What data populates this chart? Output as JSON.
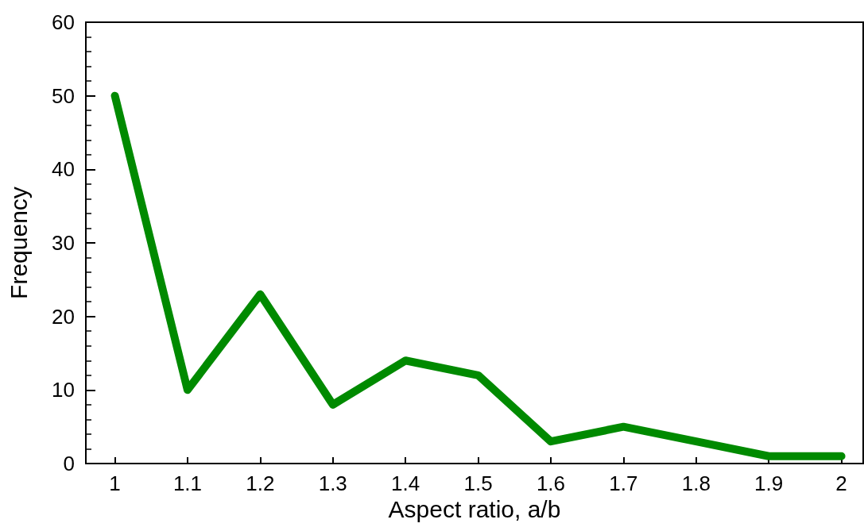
{
  "chart_data": {
    "type": "line",
    "xlabel": "Aspect ratio, a/b",
    "ylabel": "Frequency",
    "x": [
      1,
      1.1,
      1.2,
      1.3,
      1.4,
      1.5,
      1.6,
      1.7,
      1.8,
      1.9,
      2
    ],
    "series": [
      {
        "color": "#008a00",
        "values": [
          50,
          10,
          23,
          8,
          14,
          12,
          3,
          5,
          3,
          1,
          1
        ]
      }
    ],
    "xlim": [
      0.96,
      2.03
    ],
    "xticks": [
      1,
      1.1,
      1.2,
      1.3,
      1.4,
      1.5,
      1.6,
      1.7,
      1.8,
      1.9,
      2
    ],
    "ylim": [
      0,
      60
    ],
    "yticks": [
      0,
      10,
      20,
      30,
      40,
      50,
      60
    ],
    "grid": false,
    "line_style": "solid"
  }
}
